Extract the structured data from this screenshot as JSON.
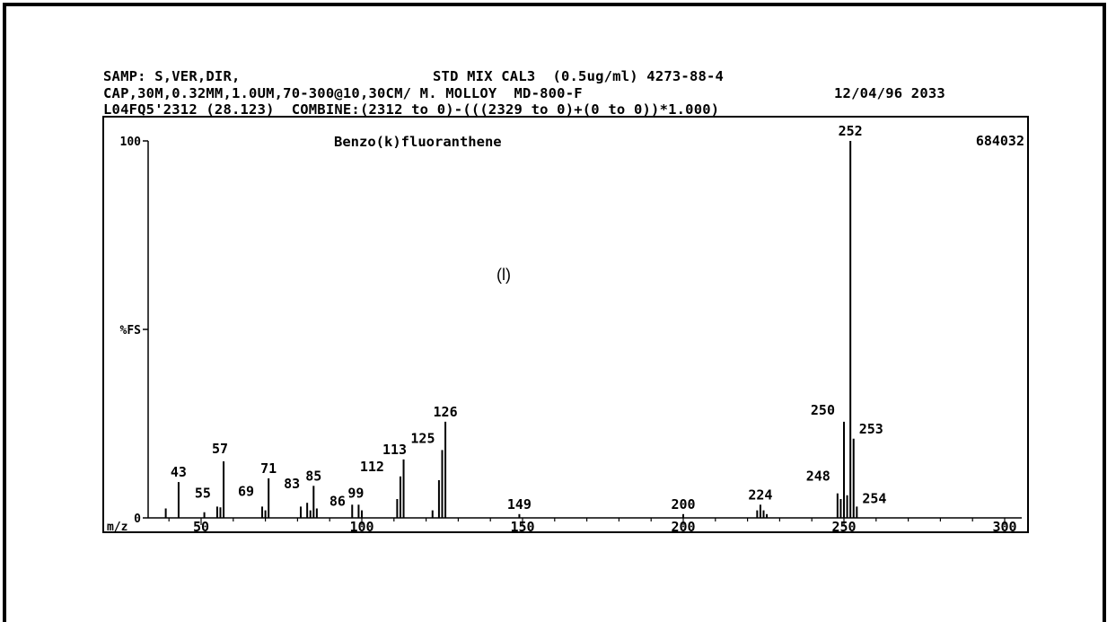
{
  "header": {
    "samp_label": "SAMP: S,VER,DIR,",
    "std_mix": "STD MIX CAL3  (0.5ug/ml) 4273-88-4",
    "cap": "CAP,30M,0.32MM,1.0UM,70-300@10,30CM/ M. MOLLOY  MD-800-F",
    "date": "12/04/96 2033",
    "scan_line": "L04FQ5'2312 (28.123)  COMBINE:(2312 to 0)-(((2329 to 0)+(0 to 0))*1.000)"
  },
  "panel_label": "(l)",
  "chart_data": {
    "type": "bar",
    "title": "Benzo(k)fluoranthene",
    "max_intensity_label": "684032",
    "xlabel": "m/z",
    "ylabel": "%FS",
    "xlim": [
      40,
      300
    ],
    "ylim": [
      0,
      100
    ],
    "x_ticks": [
      50,
      100,
      150,
      200,
      250,
      300
    ],
    "y_tick_labels": [
      {
        "value": 100,
        "label": "100"
      },
      {
        "value": 50,
        "label": "%FS"
      },
      {
        "value": 0,
        "label": "0"
      }
    ],
    "peaks": [
      {
        "mz": 39,
        "intensity": 2.5
      },
      {
        "mz": 43,
        "intensity": 9.5,
        "label": "43"
      },
      {
        "mz": 51,
        "intensity": 1.5
      },
      {
        "mz": 55,
        "intensity": 3.0,
        "label": "55"
      },
      {
        "mz": 56,
        "intensity": 2.8
      },
      {
        "mz": 57,
        "intensity": 15,
        "label": "57"
      },
      {
        "mz": 69,
        "intensity": 3.0,
        "label": "69"
      },
      {
        "mz": 70,
        "intensity": 2.0
      },
      {
        "mz": 71,
        "intensity": 10.5,
        "label": "71"
      },
      {
        "mz": 81,
        "intensity": 3.0
      },
      {
        "mz": 83,
        "intensity": 4.0,
        "label": "83"
      },
      {
        "mz": 84,
        "intensity": 2.0
      },
      {
        "mz": 85,
        "intensity": 8.5,
        "label": "85"
      },
      {
        "mz": 86,
        "intensity": 2.5,
        "label": "86"
      },
      {
        "mz": 97,
        "intensity": 3.5
      },
      {
        "mz": 99,
        "intensity": 3.5,
        "label": "99"
      },
      {
        "mz": 100,
        "intensity": 2.0
      },
      {
        "mz": 111,
        "intensity": 5.0
      },
      {
        "mz": 112,
        "intensity": 11,
        "label": "112"
      },
      {
        "mz": 113,
        "intensity": 15.5,
        "label": "113"
      },
      {
        "mz": 122,
        "intensity": 2.0
      },
      {
        "mz": 124,
        "intensity": 10
      },
      {
        "mz": 125,
        "intensity": 18,
        "label": "125"
      },
      {
        "mz": 126,
        "intensity": 25.5,
        "label": "126"
      },
      {
        "mz": 149,
        "intensity": 1.0,
        "label": "149"
      },
      {
        "mz": 200,
        "intensity": 1.0,
        "label": "200"
      },
      {
        "mz": 223,
        "intensity": 2.0
      },
      {
        "mz": 224,
        "intensity": 3.5,
        "label": "224"
      },
      {
        "mz": 225,
        "intensity": 2.0
      },
      {
        "mz": 226,
        "intensity": 1.0
      },
      {
        "mz": 248,
        "intensity": 6.5,
        "label": "248"
      },
      {
        "mz": 249,
        "intensity": 5.0
      },
      {
        "mz": 250,
        "intensity": 25.5,
        "label": "250"
      },
      {
        "mz": 251,
        "intensity": 6.0
      },
      {
        "mz": 252,
        "intensity": 100,
        "label": "252"
      },
      {
        "mz": 253,
        "intensity": 21,
        "label": "253"
      },
      {
        "mz": 254,
        "intensity": 3.0,
        "label": "254"
      }
    ]
  }
}
